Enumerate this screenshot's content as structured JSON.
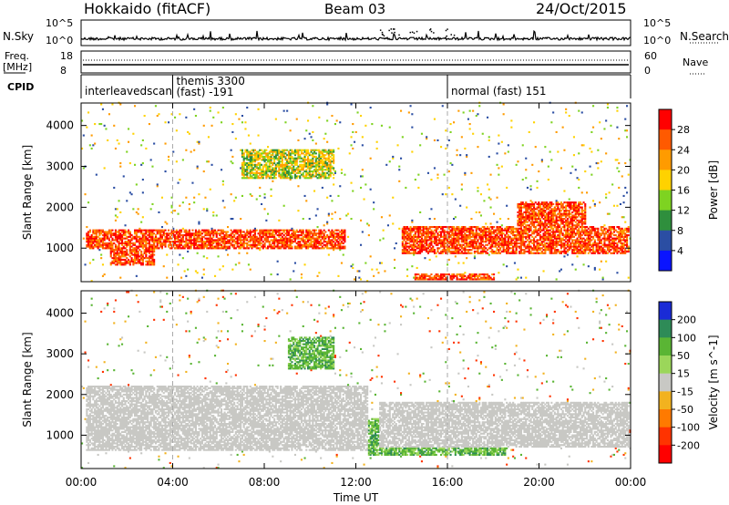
{
  "header": {
    "station": "Hokkaido (fitACF)",
    "beam": "Beam 03",
    "date": "24/Oct/2015"
  },
  "strip": {
    "nsky_label": "N.Sky",
    "nsky_ticks": [
      "10^5",
      "10^0"
    ],
    "nsearch_label": "N.Search",
    "nsearch_ticks": [
      "10^5",
      "10^0"
    ],
    "freq_label": "Freq.",
    "freq_unit": "[MHz]",
    "freq_ticks": [
      "18",
      "8"
    ],
    "nave_label": "Nave",
    "nave_ticks": [
      "60",
      "0"
    ],
    "cpid_label": "CPID",
    "cpid_segments": [
      {
        "name": "interleavedscan",
        "detail": "",
        "start": 0,
        "end": 4
      },
      {
        "name": "themis 3300",
        "detail": "(fast) -191",
        "start": 4,
        "end": 16
      },
      {
        "name": "normal (fast) 151",
        "detail": "",
        "start": 16,
        "end": 24
      }
    ]
  },
  "chart_data": {
    "type": "heatmap",
    "title": "Hokkaido (fitACF) Beam 03 24/Oct/2015",
    "xlabel": "Time UT",
    "x_ticks": [
      "00:00",
      "04:00",
      "08:00",
      "12:00",
      "16:00",
      "20:00",
      "00:00"
    ],
    "xlim_hours": [
      0,
      24
    ],
    "ylabel": "Slant Range [km]",
    "ylim_km": [
      180,
      4550
    ],
    "y_ticks": [
      1000,
      2000,
      3000,
      4000
    ],
    "mode_change_hours": [
      4,
      16
    ],
    "panels": [
      {
        "quantity": "Power",
        "colorbar_label": "Power [dB]",
        "colorbar_ticks": [
          "28",
          "24",
          "20",
          "16",
          "12",
          "8",
          "4"
        ],
        "colorbar_colors": [
          "#ff0000",
          "#ff5a00",
          "#ff9b00",
          "#ffd200",
          "#7ed321",
          "#2f8f3d",
          "#2b4ea3",
          "#0a14ff"
        ],
        "regions": [
          {
            "label": "main band",
            "t": [
              0.2,
              11.5
            ],
            "r": [
              950,
              1450
            ],
            "level": "high"
          },
          {
            "label": "morning trough",
            "t": [
              1.2,
              3.2
            ],
            "r": [
              550,
              1100
            ],
            "level": "high"
          },
          {
            "label": "late band",
            "t": [
              14,
              23.9
            ],
            "r": [
              850,
              1500
            ],
            "level": "high"
          },
          {
            "label": "sporadic 3000 km",
            "t": [
              7,
              11
            ],
            "r": [
              2700,
              3400
            ],
            "level": "medium"
          },
          {
            "label": "arc 2000 km",
            "t": [
              19,
              22
            ],
            "r": [
              1400,
              2100
            ],
            "level": "high"
          },
          {
            "label": "near range",
            "t": [
              14.5,
              18
            ],
            "r": [
              200,
              350
            ],
            "level": "high"
          }
        ]
      },
      {
        "quantity": "Velocity",
        "colorbar_label": "Velocity [m s^-1]",
        "colorbar_ticks": [
          "200",
          "100",
          "50",
          "15",
          "-15",
          "-50",
          "-100",
          "-200"
        ],
        "colorbar_colors": [
          "#1a2bd6",
          "#2e8b57",
          "#5ab534",
          "#9bd65a",
          "#c8c8c4",
          "#f2b21f",
          "#ff7a00",
          "#ff3300",
          "#ff0000"
        ],
        "regions": [
          {
            "label": "ground scatter",
            "t": [
              0.2,
              12.5
            ],
            "r": [
              600,
              2200
            ],
            "level": "low"
          },
          {
            "label": "late ground scatter",
            "t": [
              13,
              23.9
            ],
            "r": [
              700,
              1800
            ],
            "level": "low"
          },
          {
            "label": "positive patches",
            "t": [
              12.5,
              18.5
            ],
            "r": [
              500,
              1400
            ],
            "level": "positive"
          },
          {
            "label": "upper patches",
            "t": [
              9,
              11
            ],
            "r": [
              2600,
              3400
            ],
            "level": "positive"
          }
        ]
      }
    ]
  }
}
